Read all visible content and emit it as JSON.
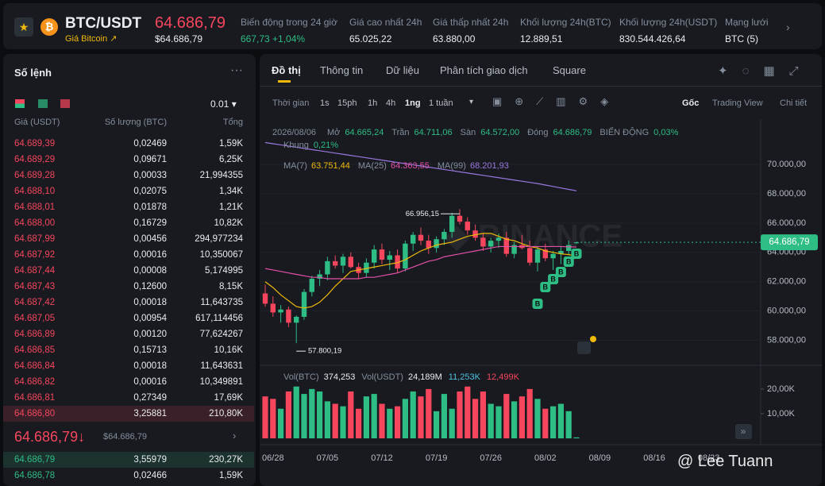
{
  "header": {
    "pair": "BTC/USDT",
    "subtitle": "Giá Bitcoin ↗",
    "price": "64.686,79",
    "price_usd": "$64.686,79",
    "stats": [
      {
        "label": "Biến động trong 24 giờ",
        "value": "667,73 +1,04%"
      },
      {
        "label": "Giá cao nhất 24h",
        "value": "65.025,22"
      },
      {
        "label": "Giá thấp nhất 24h",
        "value": "63.880,00"
      },
      {
        "label": "Khối lượng 24h(BTC)",
        "value": "12.889,51"
      },
      {
        "label": "Khối lượng 24h(USDT)",
        "value": "830.544.426,64"
      },
      {
        "label": "Mạng lưới",
        "value": "BTC (5)"
      }
    ]
  },
  "orderbook": {
    "title": "Số lệnh",
    "precision": "0.01 ▾",
    "columns": [
      "Giá (USDT)",
      "Số lượng (BTC)",
      "Tổng"
    ],
    "asks": [
      [
        "64.689,39",
        "0,02469",
        "1,59K"
      ],
      [
        "64.689,29",
        "0,09671",
        "6,25K"
      ],
      [
        "64.689,28",
        "0,00033",
        "21,994355"
      ],
      [
        "64.688,10",
        "0,02075",
        "1,34K"
      ],
      [
        "64.688,01",
        "0,01878",
        "1,21K"
      ],
      [
        "64.688,00",
        "0,16729",
        "10,82K"
      ],
      [
        "64.687,99",
        "0,00456",
        "294,977234"
      ],
      [
        "64.687,92",
        "0,00016",
        "10,350067"
      ],
      [
        "64.687,44",
        "0,00008",
        "5,174995"
      ],
      [
        "64.687,43",
        "0,12600",
        "8,15K"
      ],
      [
        "64.687,42",
        "0,00018",
        "11,643735"
      ],
      [
        "64.687,05",
        "0,00954",
        "617,114456"
      ],
      [
        "64.686,89",
        "0,00120",
        "77,624267"
      ],
      [
        "64.686,85",
        "0,15713",
        "10,16K"
      ],
      [
        "64.686,84",
        "0,00018",
        "11,643631"
      ],
      [
        "64.686,82",
        "0,00016",
        "10,349891"
      ],
      [
        "64.686,81",
        "0,27349",
        "17,69K"
      ],
      [
        "64.686,80",
        "3,25881",
        "210,80K"
      ]
    ],
    "last_price": "64.686,79↓",
    "last_price_usd": "$64.686,79",
    "bids": [
      [
        "64.686,79",
        "3,55979",
        "230,27K"
      ],
      [
        "64.686,78",
        "0,02466",
        "1,59K"
      ]
    ]
  },
  "tabs": [
    "Đồ thị",
    "Thông tin",
    "Dữ liệu",
    "Phân tích giao dịch",
    "Square"
  ],
  "toolbar": {
    "label": "Thời gian",
    "intervals": [
      "1s",
      "15ph",
      "1h",
      "4h",
      "1ng",
      "1 tuần"
    ],
    "views": [
      "Gốc",
      "Trading View",
      "Chi tiết"
    ]
  },
  "chart_data": {
    "type": "candlestick",
    "date": "2026/08/06",
    "ohlc_legend": [
      {
        "label": "Mở",
        "value": "64.665,24"
      },
      {
        "label": "Trần",
        "value": "64.711,06"
      },
      {
        "label": "Sàn",
        "value": "64.572,00"
      },
      {
        "label": "Đóng",
        "value": "64.686,79"
      },
      {
        "label": "BIẾN ĐỘNG",
        "value": "0,03%"
      },
      {
        "label": "Khung",
        "value": "0,21%"
      }
    ],
    "x_labels": [
      "06/28",
      "07/05",
      "07/12",
      "07/19",
      "07/26",
      "08/02",
      "08/09",
      "08/16",
      "08/23"
    ],
    "candles": [
      [
        61200,
        61800,
        60300,
        60500
      ],
      [
        60500,
        61000,
        59600,
        59900
      ],
      [
        59900,
        60400,
        59200,
        60100
      ],
      [
        60100,
        60300,
        58900,
        59200
      ],
      [
        59200,
        59700,
        57800.19,
        59600
      ],
      [
        59600,
        61500,
        59400,
        61300
      ],
      [
        61300,
        62400,
        61000,
        62200
      ],
      [
        62200,
        62800,
        61700,
        62500
      ],
      [
        62500,
        63700,
        62100,
        63400
      ],
      [
        63400,
        63800,
        62900,
        63100
      ],
      [
        63100,
        63900,
        62600,
        63700
      ],
      [
        63700,
        64000,
        62900,
        63000
      ],
      [
        63000,
        63300,
        62200,
        62600
      ],
      [
        62600,
        63600,
        62300,
        63300
      ],
      [
        63300,
        64500,
        62900,
        64200
      ],
      [
        64200,
        64600,
        63200,
        63500
      ],
      [
        63500,
        64100,
        62800,
        63800
      ],
      [
        63800,
        64200,
        62600,
        62900
      ],
      [
        62900,
        64800,
        62700,
        64600
      ],
      [
        64600,
        65400,
        64100,
        65200
      ],
      [
        65200,
        65700,
        64500,
        64800
      ],
      [
        64800,
        65200,
        63900,
        64300
      ],
      [
        64300,
        65100,
        64000,
        64900
      ],
      [
        64900,
        65600,
        64500,
        65400
      ],
      [
        65400,
        66700,
        65000,
        66500
      ],
      [
        66500,
        66956.15,
        65900,
        66100
      ],
      [
        66100,
        66400,
        65200,
        65500
      ],
      [
        65500,
        65900,
        64800,
        65000
      ],
      [
        65000,
        65300,
        64100,
        64400
      ],
      [
        64400,
        65000,
        64000,
        64800
      ],
      [
        64800,
        65300,
        64300,
        65000
      ],
      [
        65000,
        65400,
        63700,
        63900
      ],
      [
        63900,
        64700,
        63600,
        64500
      ],
      [
        64500,
        65200,
        64200,
        64300
      ],
      [
        64300,
        64800,
        63100,
        63300
      ],
      [
        63300,
        64400,
        62700,
        64200
      ],
      [
        64200,
        64600,
        63400,
        63600
      ],
      [
        63600,
        64100,
        62800,
        63900
      ],
      [
        63900,
        64400,
        63200,
        64100
      ],
      [
        64100,
        64800,
        63800,
        64500
      ],
      [
        64665.24,
        64711.06,
        64572,
        64686.79
      ]
    ],
    "ma": [
      {
        "name": "MA(7)",
        "value_label": "63.751,44",
        "color": "#f0b90b",
        "values": [
          62000,
          61600,
          61100,
          60700,
          60300,
          60200,
          60300,
          60600,
          61100,
          61700,
          62200,
          62700,
          62800,
          62900,
          63000,
          63100,
          63200,
          63300,
          63500,
          63800,
          64100,
          64300,
          64500,
          64600,
          64700,
          64900,
          65100,
          65200,
          65300,
          65300,
          65100,
          64900,
          64800,
          64600,
          64400,
          64300,
          64100,
          64000,
          63900,
          63850,
          63751.44
        ]
      },
      {
        "name": "MA(25)",
        "value_label": "64.363,55",
        "color": "#e44fa8",
        "values": [
          62900,
          62800,
          62700,
          62600,
          62500,
          62400,
          62300,
          62300,
          62200,
          62200,
          62200,
          62200,
          62200,
          62300,
          62300,
          62400,
          62500,
          62600,
          62800,
          63000,
          63200,
          63400,
          63500,
          63700,
          63800,
          63900,
          64000,
          64100,
          64200,
          64300,
          64400,
          64400,
          64400,
          64400,
          64400,
          64400,
          64400,
          64400,
          64400,
          64380,
          64363.55
        ]
      },
      {
        "name": "MA(99)",
        "value_label": "68.201,93",
        "color": "#9a77e0",
        "values": [
          71500,
          71420,
          71340,
          71260,
          71180,
          71100,
          71020,
          70940,
          70860,
          70780,
          70700,
          70620,
          70540,
          70460,
          70380,
          70300,
          70220,
          70140,
          70060,
          69980,
          69900,
          69820,
          69740,
          69660,
          69580,
          69500,
          69420,
          69340,
          69260,
          69180,
          69100,
          69020,
          68940,
          68860,
          68780,
          68700,
          68600,
          68500,
          68400,
          68300,
          68201.93
        ]
      }
    ],
    "ylim": [
      56400,
      73100
    ],
    "yticks": [
      {
        "value": 58000,
        "label": "58.000,00"
      },
      {
        "value": 60000,
        "label": "60.000,00"
      },
      {
        "value": 62000,
        "label": "62.000,00"
      },
      {
        "value": 64000,
        "label": "64.000,00"
      },
      {
        "value": 66000,
        "label": "66.000,00"
      },
      {
        "value": 68000,
        "label": "68.000,00"
      },
      {
        "value": 70000,
        "label": "70.000,00"
      }
    ],
    "current_price": {
      "value": 64686.79,
      "label": "64.686,79"
    },
    "high_label": {
      "value": 66956.15,
      "label": "66.956,15"
    },
    "low_label": {
      "value": 57800.19,
      "label": "57.800,19"
    },
    "volume": {
      "values": [
        17,
        16,
        12,
        19,
        21,
        18,
        20,
        19,
        15,
        14,
        13,
        19,
        12,
        17,
        18,
        14,
        12,
        13,
        16,
        19,
        17,
        20,
        11,
        18,
        12,
        19,
        21,
        16,
        19,
        14,
        13,
        18,
        15,
        17,
        20,
        16,
        12,
        13,
        14,
        11,
        0.4
      ],
      "ylim": [
        0,
        28
      ],
      "yticks": [
        {
          "value": 10,
          "label": "10,00K"
        },
        {
          "value": 20,
          "label": "20,00K"
        }
      ],
      "legend": [
        {
          "name": "Vol(BTC)",
          "value": "374,253"
        },
        {
          "name": "Vol(USDT)",
          "value": "24,189M"
        },
        {
          "name": "",
          "value": "11,253K"
        },
        {
          "name": "",
          "value": "12,499K"
        }
      ]
    },
    "colors": {
      "up": "#2ebd85",
      "down": "#f6465d"
    }
  },
  "watermark": "@ Lee Tuann"
}
